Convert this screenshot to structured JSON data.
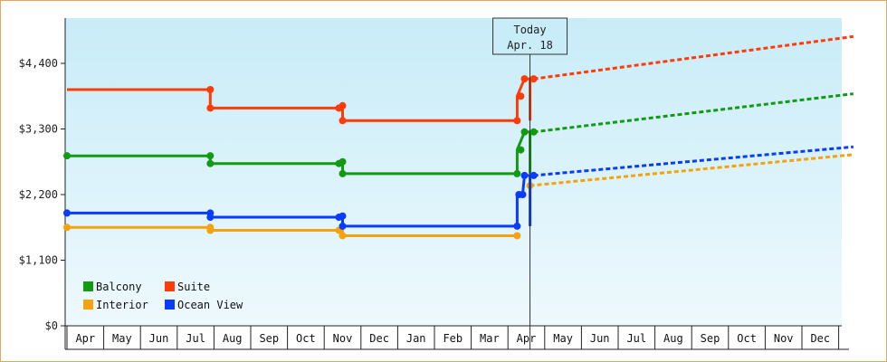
{
  "chart_data": {
    "type": "line",
    "title": "",
    "xlabel": "",
    "ylabel": "",
    "ylim": [
      0,
      4400
    ],
    "y_ticks": [
      {
        "value": 0,
        "label": "$0"
      },
      {
        "value": 1100,
        "label": "$1,100"
      },
      {
        "value": 2200,
        "label": "$2,200"
      },
      {
        "value": 3300,
        "label": "$3,300"
      },
      {
        "value": 4400,
        "label": "$4,400"
      }
    ],
    "x_month_labels": [
      "Apr",
      "May",
      "Jun",
      "Jul",
      "Aug",
      "Sep",
      "Oct",
      "Nov",
      "Dec",
      "Jan",
      "Feb",
      "Mar",
      "Apr",
      "May",
      "Jun",
      "Jul",
      "Aug",
      "Sep",
      "Oct",
      "Nov",
      "Dec"
    ],
    "x_range_months": [
      0,
      21.4
    ],
    "today": {
      "line1": "Today",
      "line2": "Apr. 18",
      "x": 12.6
    },
    "grid": "none",
    "legend_position": "bottom-left",
    "series": [
      {
        "name": "Balcony",
        "color": "#139a13",
        "history": [
          [
            0,
            2850
          ],
          [
            3.9,
            2850
          ],
          [
            3.9,
            2720
          ],
          [
            7.5,
            2720
          ],
          [
            7.5,
            2550
          ],
          [
            12.25,
            2550
          ],
          [
            12.25,
            2950
          ],
          [
            12.45,
            3250
          ],
          [
            12.6,
            3250
          ],
          [
            12.6,
            2550
          ]
        ],
        "markers": [
          [
            0,
            2850
          ],
          [
            3.9,
            2850
          ],
          [
            3.9,
            2720
          ],
          [
            7.4,
            2720
          ],
          [
            7.5,
            2750
          ],
          [
            7.5,
            2550
          ],
          [
            12.25,
            2550
          ],
          [
            12.35,
            2950
          ],
          [
            12.45,
            3250
          ],
          [
            12.7,
            3250
          ]
        ],
        "forecast": [
          [
            12.7,
            3250
          ],
          [
            21.4,
            3890
          ]
        ]
      },
      {
        "name": "Suite",
        "color": "#ff3b0a",
        "history": [
          [
            0,
            3960
          ],
          [
            3.9,
            3960
          ],
          [
            3.9,
            3650
          ],
          [
            7.5,
            3650
          ],
          [
            7.5,
            3440
          ],
          [
            12.25,
            3440
          ],
          [
            12.25,
            3850
          ],
          [
            12.45,
            4140
          ],
          [
            12.6,
            4140
          ],
          [
            12.6,
            3440
          ]
        ],
        "markers": [
          [
            3.9,
            3960
          ],
          [
            3.9,
            3650
          ],
          [
            7.4,
            3650
          ],
          [
            7.5,
            3690
          ],
          [
            7.5,
            3440
          ],
          [
            12.25,
            3440
          ],
          [
            12.35,
            3850
          ],
          [
            12.45,
            4140
          ],
          [
            12.7,
            4140
          ]
        ],
        "forecast": [
          [
            12.7,
            4140
          ],
          [
            21.4,
            4850
          ]
        ]
      },
      {
        "name": "Interior",
        "color": "#f4a20f",
        "history": [
          [
            0,
            1650
          ],
          [
            3.9,
            1650
          ],
          [
            3.9,
            1600
          ],
          [
            7.5,
            1600
          ],
          [
            7.5,
            1510
          ],
          [
            12.25,
            1510
          ]
        ],
        "markers": [
          [
            0,
            1650
          ],
          [
            3.9,
            1650
          ],
          [
            3.9,
            1600
          ],
          [
            7.4,
            1600
          ],
          [
            7.5,
            1510
          ],
          [
            12.25,
            1510
          ],
          [
            12.4,
            2200
          ],
          [
            12.6,
            2350
          ]
        ],
        "forecast": [
          [
            12.6,
            2350
          ],
          [
            21.4,
            2870
          ]
        ]
      },
      {
        "name": "Ocean View",
        "color": "#0a3cff",
        "history": [
          [
            0,
            1890
          ],
          [
            3.9,
            1890
          ],
          [
            3.9,
            1820
          ],
          [
            7.5,
            1820
          ],
          [
            7.5,
            1670
          ],
          [
            12.25,
            1670
          ],
          [
            12.25,
            2200
          ],
          [
            12.4,
            2200
          ],
          [
            12.45,
            2520
          ],
          [
            12.6,
            2520
          ],
          [
            12.6,
            1670
          ]
        ],
        "markers": [
          [
            0,
            1890
          ],
          [
            3.9,
            1890
          ],
          [
            3.9,
            1820
          ],
          [
            7.4,
            1820
          ],
          [
            7.5,
            1840
          ],
          [
            7.5,
            1670
          ],
          [
            12.25,
            1670
          ],
          [
            12.3,
            2200
          ],
          [
            12.4,
            2200
          ],
          [
            12.45,
            2520
          ],
          [
            12.7,
            2520
          ]
        ],
        "forecast": [
          [
            12.7,
            2520
          ],
          [
            21.4,
            3000
          ]
        ]
      }
    ]
  }
}
